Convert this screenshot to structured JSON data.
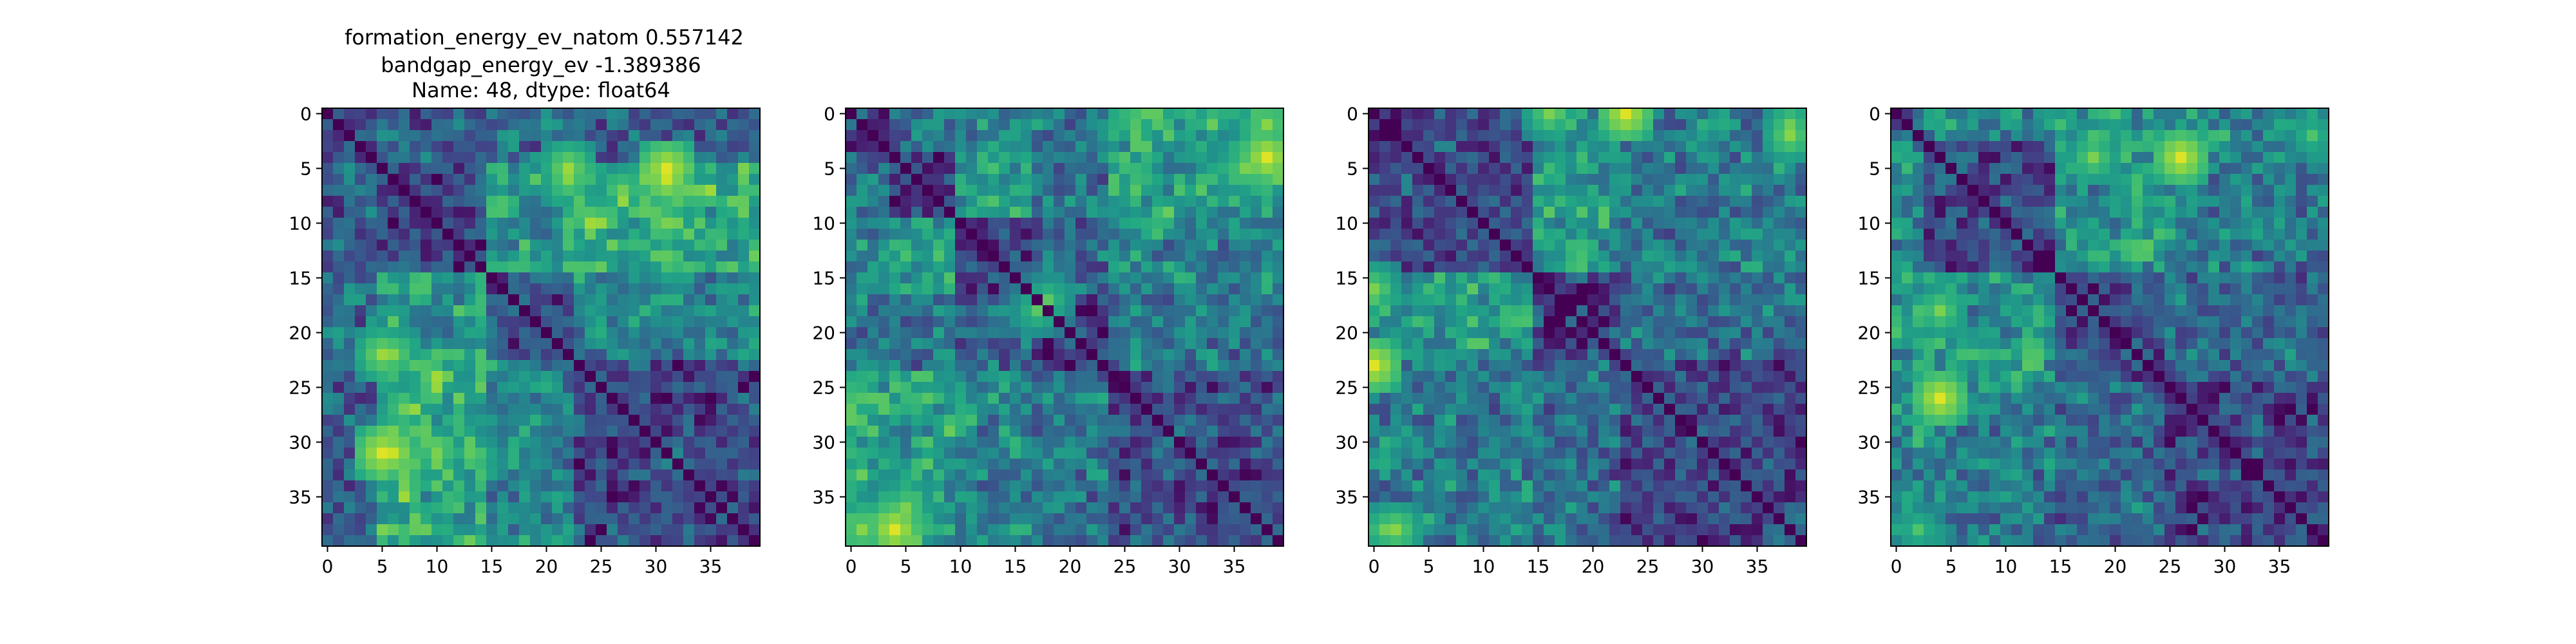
{
  "chart_data": {
    "type": "heatmap",
    "title_lines": [
      "formation_energy_ev_natom    0.557142",
      "bandgap_energy_ev          -1.389386",
      "Name: 48, dtype: float64"
    ],
    "colormap": "viridis",
    "matrix_size": 40,
    "x_ticks": [
      0,
      5,
      10,
      15,
      20,
      25,
      30,
      35
    ],
    "y_ticks": [
      0,
      5,
      10,
      15,
      20,
      25,
      30,
      35
    ],
    "x_tick_labels": [
      "0",
      "5",
      "10",
      "15",
      "20",
      "25",
      "30",
      "35"
    ],
    "y_tick_labels": [
      "0",
      "5",
      "10",
      "15",
      "20",
      "25",
      "30",
      "35"
    ],
    "value_range": [
      0,
      1
    ],
    "panels": [
      {
        "blocks": [
          0,
          5,
          15,
          23,
          40
        ],
        "block_levels": [
          [
            0.18,
            0.3,
            0.35,
            0.3
          ],
          [
            0.3,
            0.2,
            0.55,
            0.62
          ],
          [
            0.35,
            0.55,
            0.22,
            0.45
          ],
          [
            0.3,
            0.62,
            0.45,
            0.22
          ]
        ],
        "hotspots": [
          {
            "row": 31,
            "col": 5,
            "value": 0.95
          },
          {
            "row": 22,
            "col": 5,
            "value": 0.85
          },
          {
            "row": 6,
            "col": 31,
            "value": 0.92
          },
          {
            "row": 6,
            "col": 22,
            "value": 0.82
          },
          {
            "row": 10,
            "col": 31,
            "value": 0.8
          },
          {
            "row": 27,
            "col": 7,
            "value": 0.78
          }
        ]
      },
      {
        "blocks": [
          0,
          4,
          10,
          17,
          24,
          40
        ],
        "block_levels": [
          [
            0.2,
            0.35,
            0.45,
            0.38,
            0.6
          ],
          [
            0.35,
            0.18,
            0.55,
            0.4,
            0.58
          ],
          [
            0.45,
            0.55,
            0.2,
            0.35,
            0.45
          ],
          [
            0.38,
            0.4,
            0.35,
            0.18,
            0.4
          ],
          [
            0.6,
            0.58,
            0.45,
            0.4,
            0.22
          ]
        ],
        "hotspots": [
          {
            "row": 4,
            "col": 38,
            "value": 0.95
          },
          {
            "row": 1,
            "col": 38,
            "value": 0.82
          },
          {
            "row": 38,
            "col": 4,
            "value": 0.95
          },
          {
            "row": 36,
            "col": 5,
            "value": 0.8
          },
          {
            "row": 17,
            "col": 18,
            "value": 0.74
          }
        ]
      },
      {
        "blocks": [
          0,
          15,
          23,
          40
        ],
        "block_levels": [
          [
            0.22,
            0.55,
            0.42
          ],
          [
            0.55,
            0.2,
            0.35
          ],
          [
            0.42,
            0.35,
            0.22
          ]
        ],
        "hotspots": [
          {
            "row": 0,
            "col": 23,
            "value": 0.95
          },
          {
            "row": 23,
            "col": 0,
            "value": 0.9
          },
          {
            "row": 38,
            "col": 2,
            "value": 0.82
          },
          {
            "row": 0,
            "col": 16,
            "value": 0.8
          },
          {
            "row": 1,
            "col": 38,
            "value": 0.78
          },
          {
            "row": 16,
            "col": 0,
            "value": 0.7
          }
        ]
      },
      {
        "blocks": [
          0,
          3,
          15,
          25,
          40
        ],
        "block_levels": [
          [
            0.2,
            0.45,
            0.5,
            0.45
          ],
          [
            0.45,
            0.22,
            0.5,
            0.42
          ],
          [
            0.5,
            0.5,
            0.22,
            0.35
          ],
          [
            0.45,
            0.42,
            0.35,
            0.2
          ]
        ],
        "hotspots": [
          {
            "row": 26,
            "col": 4,
            "value": 0.95
          },
          {
            "row": 4,
            "col": 26,
            "value": 0.92
          },
          {
            "row": 4,
            "col": 18,
            "value": 0.8
          },
          {
            "row": 18,
            "col": 4,
            "value": 0.75
          },
          {
            "row": 2,
            "col": 38,
            "value": 0.72
          }
        ]
      }
    ]
  }
}
